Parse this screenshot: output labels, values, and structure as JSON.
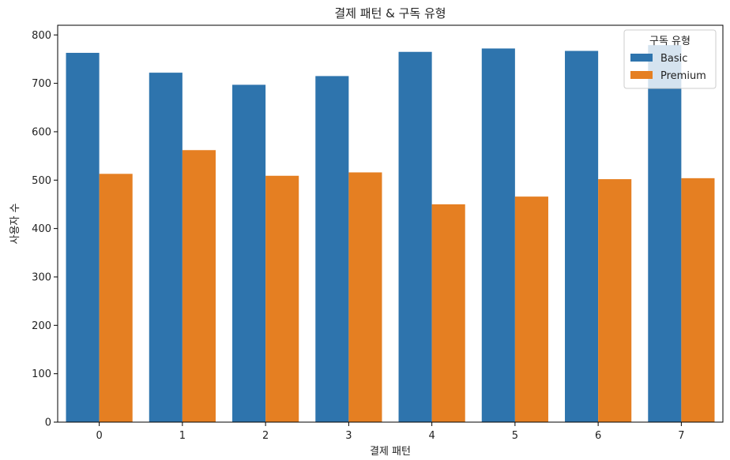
{
  "chart_data": {
    "type": "bar",
    "title": "결제 패턴 & 구독 유형",
    "xlabel": "결제 패턴",
    "ylabel": "사용자 수",
    "categories": [
      "0",
      "1",
      "2",
      "3",
      "4",
      "5",
      "6",
      "7"
    ],
    "series": [
      {
        "name": "Basic",
        "color": "#2e74ad",
        "values": [
          763,
          722,
          697,
          715,
          765,
          772,
          767,
          779
        ]
      },
      {
        "name": "Premium",
        "color": "#e57f22",
        "values": [
          513,
          562,
          509,
          516,
          450,
          466,
          502,
          504
        ]
      }
    ],
    "ylim": [
      0,
      820
    ],
    "yticks": [
      0,
      100,
      200,
      300,
      400,
      500,
      600,
      700,
      800
    ],
    "grid": false,
    "legend": {
      "title": "구독 유형",
      "placement": "top-right"
    }
  }
}
